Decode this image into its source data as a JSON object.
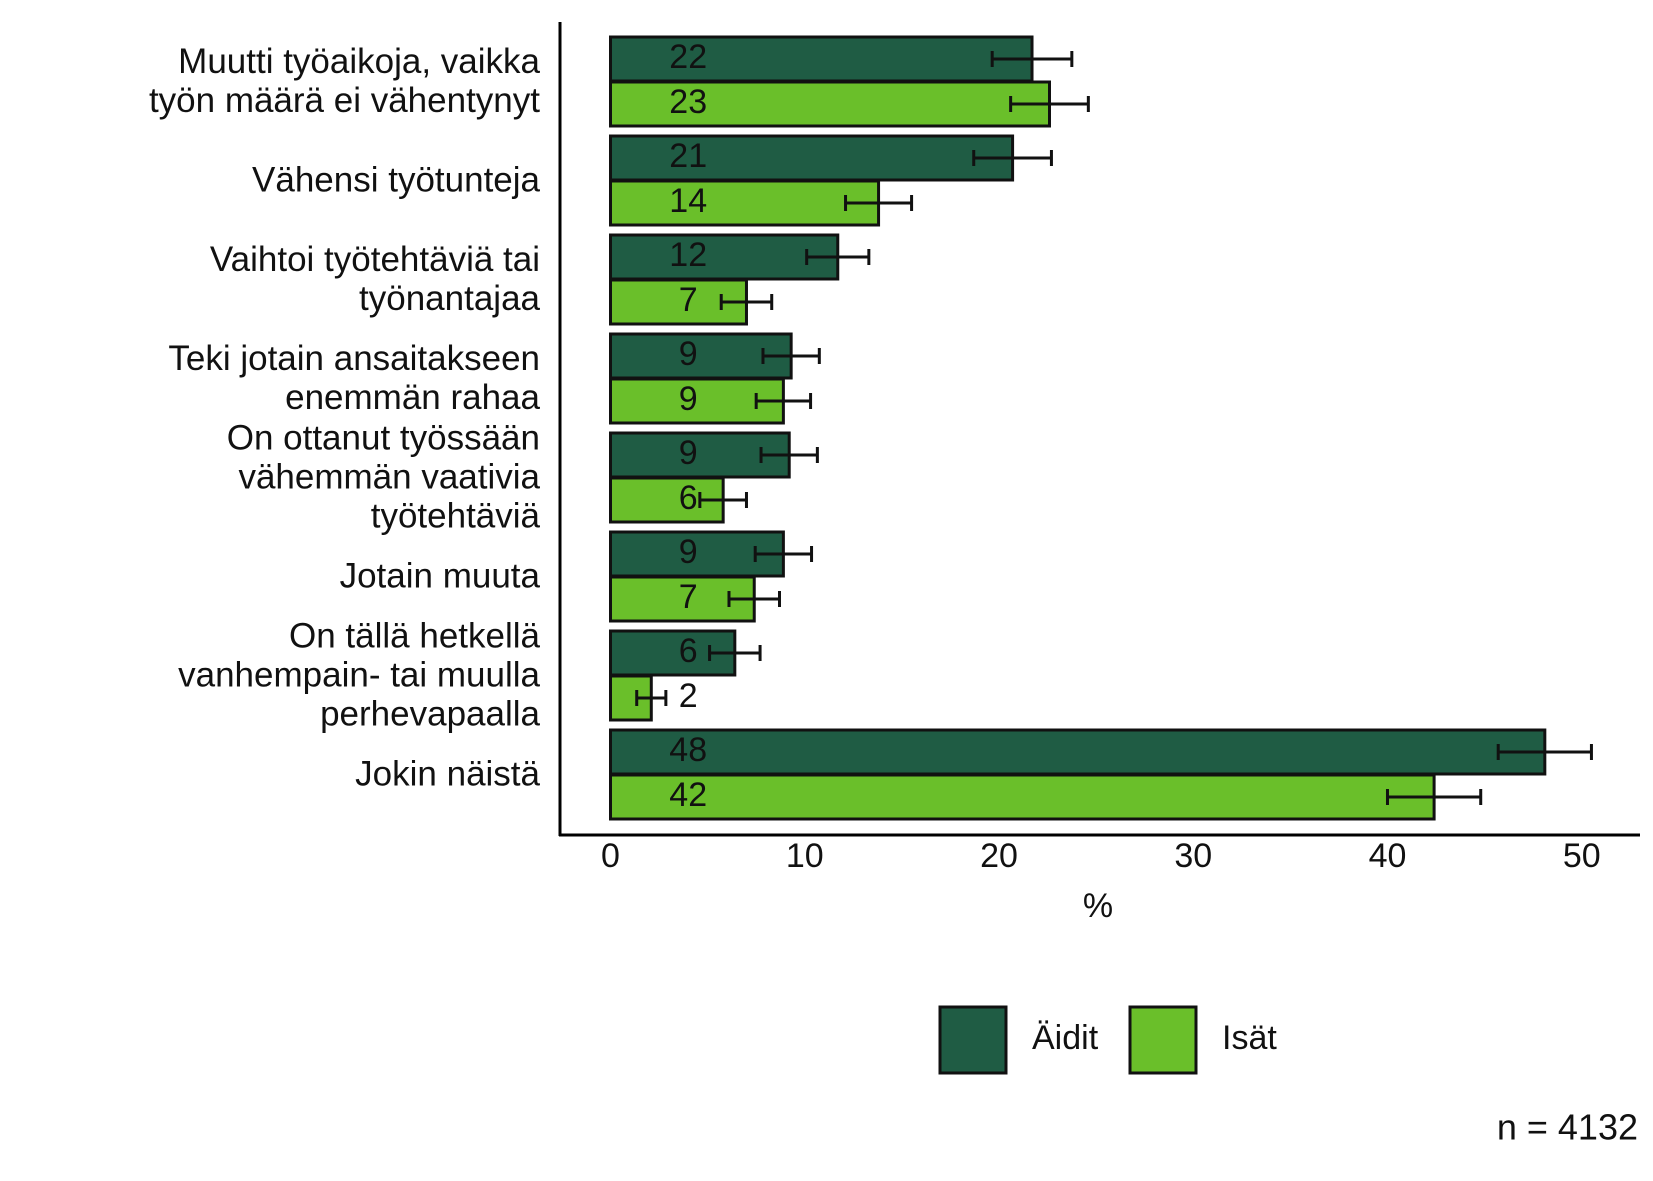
{
  "chart_data": {
    "type": "bar",
    "orientation": "horizontal",
    "categories": [
      "Muutti työaikoja, vaikka\ntyön määrä ei vähentynyt",
      "Vähensi työtunteja",
      "Vaihtoi työtehtäviä tai\ntyönantajaa",
      "Teki jotain ansaitakseen\nenemmän rahaa",
      "On ottanut työssään\nvähemmän vaativia\ntyötehtäviä",
      "Jotain muuta",
      "On tällä hetkellä\nvanhempain- tai muulla\nperhevapaalla",
      "Jokin näistä"
    ],
    "series": [
      {
        "name": "Äidit",
        "color": "#1f5c44",
        "values": [
          21.7,
          20.7,
          11.7,
          9.3,
          9.2,
          8.9,
          6.4,
          48.1
        ],
        "value_labels": [
          "22",
          "21",
          "12",
          "9",
          "9",
          "9",
          "6",
          "48"
        ],
        "errors": [
          2.05,
          2.0,
          1.6,
          1.45,
          1.45,
          1.45,
          1.3,
          2.4
        ]
      },
      {
        "name": "Isät",
        "color": "#6abf2a",
        "values": [
          22.6,
          13.8,
          7.0,
          8.9,
          5.8,
          7.4,
          2.1,
          42.4
        ],
        "value_labels": [
          "23",
          "14",
          "7",
          "9",
          "6",
          "7",
          "2",
          "42"
        ],
        "errors": [
          2.0,
          1.7,
          1.3,
          1.4,
          1.2,
          1.3,
          0.75,
          2.4
        ]
      }
    ],
    "xlabel": "%",
    "xlim": [
      -2.6,
      53
    ],
    "xticks": [
      0,
      10,
      20,
      30,
      40,
      50
    ],
    "note": "n = 4132"
  }
}
